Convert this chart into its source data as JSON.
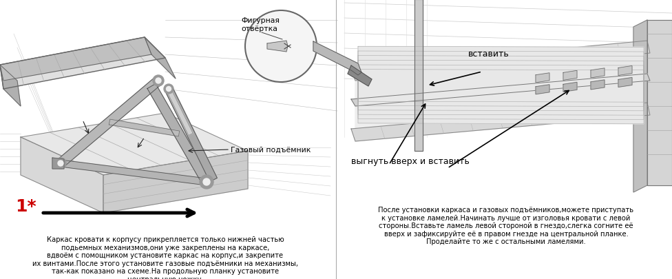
{
  "fig_width": 9.76,
  "fig_height": 4.06,
  "dpi": 100,
  "bg_color": "#ffffff",
  "text_color": "#000000",
  "red_color": "#cc0000",
  "gray_line": "#999999",
  "dark_line": "#444444",
  "mid_gray": "#aaaaaa",
  "light_gray": "#dddddd",
  "med_gray": "#c0c0c0",
  "arm_gray": "#b0b0b0",
  "step_fontsize": 18,
  "label_fontsize": 7.5,
  "body_fontsize": 7.2,
  "left_body_text": "Каркас кровати к корпусу прикрепляется только нижней частью\nподьемных механизмов,они уже закреплены на каркасе,\nвдвоём с помощником установите каркас на корпус,и закрепите\nих винтами.После этого установите газовые подъёмники на механизмы,\nтак-как показано на схеме.На продольную планку установите\nцентральную ножку.",
  "right_body_text": "После установки каркаса и газовых подъёмников,можете приступать\nк установке ламелей.Начинать лучше от изголовья кровати с левой\nстороны.Вставьте ламель левой стороной в гнездо,слегка согните её\nвверх и зафиксируйте её в правом гнезде на центральной планке.\nПроделайте то же с остальными ламелями.",
  "label_figurnaya": "Фигурная\nотвёртка",
  "label_gazoviy": "Газовый подъёмник",
  "label_vstavit": "вставить",
  "label_vygnut": "выгнуть вверх и вставить",
  "step_label": "1*"
}
